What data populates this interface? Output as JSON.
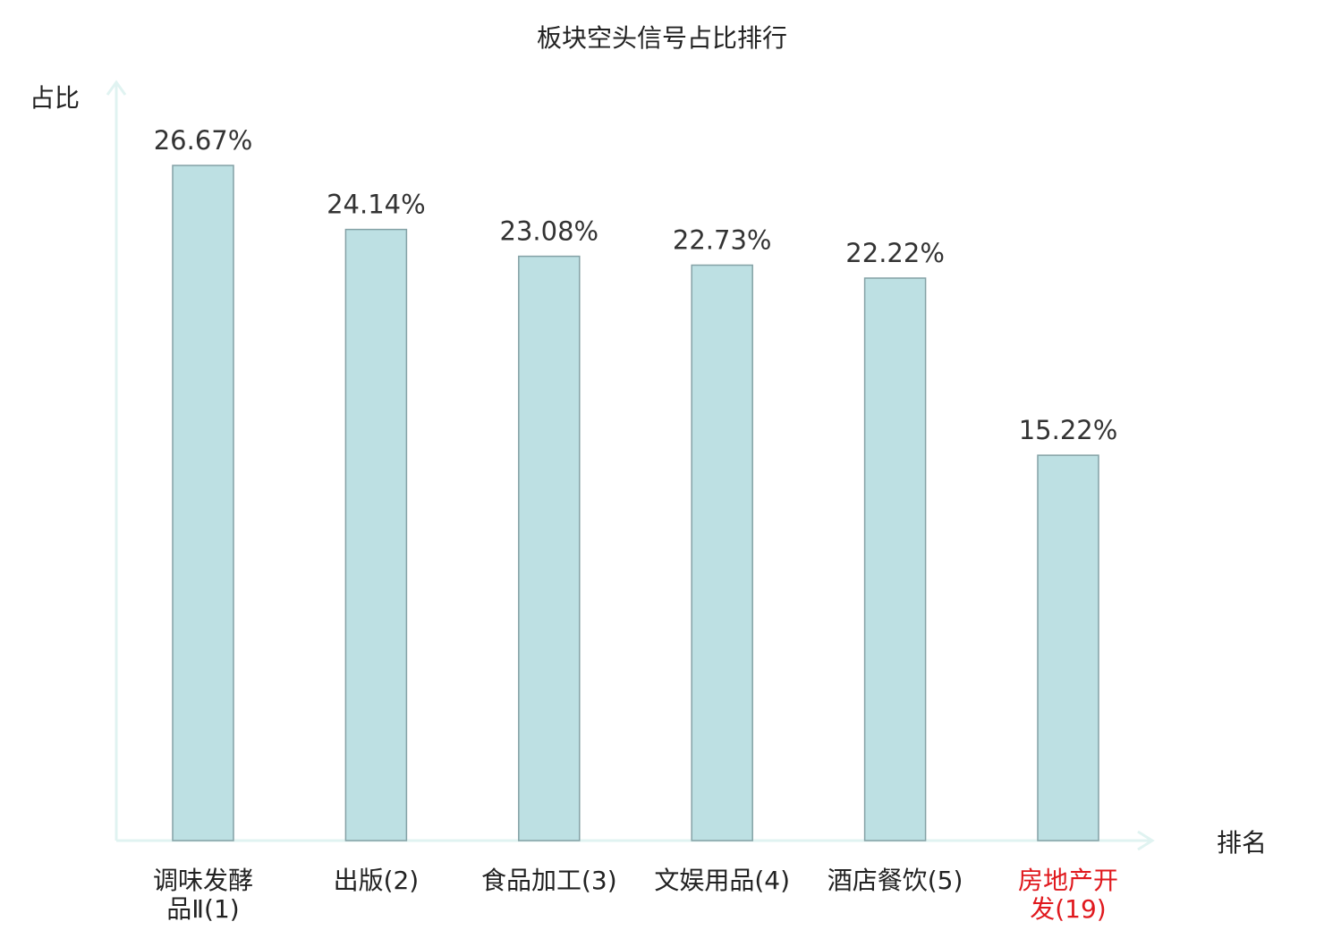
{
  "chart_data": {
    "type": "bar",
    "title": "板块空头信号占比排行",
    "ylabel": "占比",
    "xlabel": "排名",
    "categories": [
      {
        "lines": [
          "调味发酵",
          "品Ⅱ(1)"
        ],
        "highlight": false
      },
      {
        "lines": [
          "出版(2)"
        ],
        "highlight": false
      },
      {
        "lines": [
          "食品加工(3)"
        ],
        "highlight": false
      },
      {
        "lines": [
          "文娱用品(4)"
        ],
        "highlight": false
      },
      {
        "lines": [
          "酒店餐饮(5)"
        ],
        "highlight": false
      },
      {
        "lines": [
          "房地产开",
          "发(19)"
        ],
        "highlight": true
      }
    ],
    "values": [
      26.67,
      24.14,
      23.08,
      22.73,
      22.22,
      15.22
    ],
    "value_labels": [
      "26.67%",
      "24.14%",
      "23.08%",
      "22.73%",
      "22.22%",
      "15.22%"
    ],
    "unit": "%",
    "ylim": [
      0,
      26.67
    ],
    "grid": false,
    "legend": "none",
    "colors": {
      "bar_fill": "#bde0e3",
      "bar_stroke": "#84a1a5",
      "axis": "#e0f3f1",
      "text": "#222222",
      "highlight_text": "#e0191e"
    }
  }
}
